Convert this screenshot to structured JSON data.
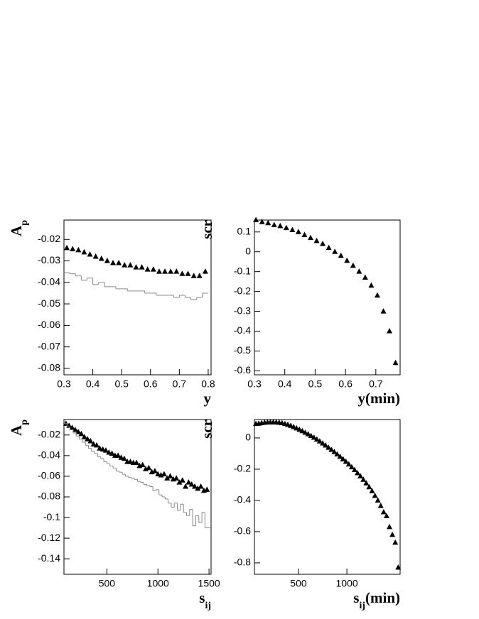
{
  "chart_data": [
    {
      "type": "scatter",
      "xlabel": [
        {
          "text": "y"
        }
      ],
      "ylabel": [
        {
          "text": "A"
        },
        {
          "text": "p",
          "sub": true
        }
      ],
      "xlim": [
        0.3,
        0.81
      ],
      "xticks": [
        0.3,
        0.4,
        0.5,
        0.6,
        0.7,
        0.8
      ],
      "ylim": [
        -0.083,
        -0.011
      ],
      "yticks": [
        -0.02,
        -0.03,
        -0.04,
        -0.05,
        -0.06,
        -0.07,
        -0.08
      ],
      "series": [
        {
          "type": "scatter",
          "color": "#000000",
          "x": [
            0.31,
            0.33,
            0.35,
            0.37,
            0.39,
            0.41,
            0.43,
            0.45,
            0.47,
            0.49,
            0.51,
            0.53,
            0.55,
            0.57,
            0.59,
            0.61,
            0.63,
            0.65,
            0.67,
            0.69,
            0.71,
            0.73,
            0.75,
            0.77,
            0.79
          ],
          "values": [
            -0.024,
            -0.0245,
            -0.025,
            -0.026,
            -0.027,
            -0.028,
            -0.029,
            -0.03,
            -0.031,
            -0.031,
            -0.032,
            -0.032,
            -0.033,
            -0.033,
            -0.034,
            -0.034,
            -0.035,
            -0.035,
            -0.035,
            -0.035,
            -0.036,
            -0.036,
            -0.037,
            -0.037,
            -0.035
          ]
        },
        {
          "type": "histogram",
          "color": "#888888",
          "bins": [
            0.3,
            0.32,
            0.34,
            0.36,
            0.38,
            0.4,
            0.42,
            0.44,
            0.46,
            0.48,
            0.5,
            0.52,
            0.54,
            0.56,
            0.58,
            0.6,
            0.62,
            0.64,
            0.66,
            0.68,
            0.7,
            0.72,
            0.74,
            0.76,
            0.78,
            0.8
          ],
          "values": [
            -0.0355,
            -0.036,
            -0.037,
            -0.039,
            -0.038,
            -0.041,
            -0.04,
            -0.042,
            -0.042,
            -0.043,
            -0.043,
            -0.044,
            -0.044,
            -0.044,
            -0.045,
            -0.045,
            -0.046,
            -0.046,
            -0.046,
            -0.047,
            -0.046,
            -0.047,
            -0.048,
            -0.047,
            -0.045
          ]
        }
      ]
    },
    {
      "type": "scatter",
      "xlabel": [
        {
          "text": "y(min)"
        }
      ],
      "ylabel": [
        {
          "text": "scr"
        }
      ],
      "xlim": [
        0.3,
        0.78
      ],
      "xticks": [
        0.3,
        0.4,
        0.5,
        0.6,
        0.7
      ],
      "ylim": [
        -0.62,
        0.16
      ],
      "yticks": [
        0.1,
        0,
        -0.1,
        -0.2,
        -0.3,
        -0.4,
        -0.5,
        -0.6
      ],
      "series": [
        {
          "type": "scatter",
          "color": "#000000",
          "x": [
            0.305,
            0.325,
            0.345,
            0.365,
            0.385,
            0.405,
            0.425,
            0.445,
            0.465,
            0.485,
            0.505,
            0.525,
            0.545,
            0.565,
            0.585,
            0.605,
            0.625,
            0.645,
            0.665,
            0.685,
            0.705,
            0.725,
            0.745,
            0.765
          ],
          "values": [
            0.16,
            0.15,
            0.145,
            0.135,
            0.13,
            0.12,
            0.11,
            0.1,
            0.085,
            0.07,
            0.055,
            0.04,
            0.02,
            0,
            -0.02,
            -0.045,
            -0.07,
            -0.1,
            -0.13,
            -0.17,
            -0.22,
            -0.3,
            -0.4,
            -0.56
          ]
        }
      ]
    },
    {
      "type": "scatter",
      "xlabel": [
        {
          "text": "s"
        },
        {
          "text": "ij",
          "sub": true
        }
      ],
      "ylabel": [
        {
          "text": "A"
        },
        {
          "text": "p",
          "sub": true
        }
      ],
      "xlim": [
        80,
        1520
      ],
      "xticks": [
        500,
        1000,
        1500
      ],
      "ylim": [
        -0.155,
        -0.005
      ],
      "yticks": [
        -0.02,
        -0.04,
        -0.06,
        -0.08,
        -0.1,
        -0.12,
        -0.14
      ],
      "series": [
        {
          "type": "scatter",
          "color": "#000000",
          "x": [
            100,
            130,
            160,
            190,
            220,
            250,
            280,
            310,
            340,
            370,
            400,
            430,
            460,
            490,
            520,
            550,
            580,
            610,
            640,
            670,
            700,
            730,
            760,
            790,
            820,
            850,
            880,
            910,
            940,
            970,
            1000,
            1030,
            1060,
            1090,
            1120,
            1150,
            1180,
            1210,
            1240,
            1270,
            1300,
            1330,
            1360,
            1390,
            1420,
            1450,
            1480
          ],
          "values": [
            -0.009,
            -0.011,
            -0.013,
            -0.015,
            -0.017,
            -0.019,
            -0.022,
            -0.024,
            -0.026,
            -0.029,
            -0.03,
            -0.033,
            -0.034,
            -0.035,
            -0.037,
            -0.038,
            -0.04,
            -0.04,
            -0.042,
            -0.043,
            -0.046,
            -0.046,
            -0.047,
            -0.047,
            -0.05,
            -0.049,
            -0.053,
            -0.052,
            -0.056,
            -0.055,
            -0.058,
            -0.059,
            -0.058,
            -0.062,
            -0.06,
            -0.063,
            -0.062,
            -0.066,
            -0.064,
            -0.07,
            -0.066,
            -0.068,
            -0.07,
            -0.072,
            -0.07,
            -0.074,
            -0.073
          ]
        },
        {
          "type": "histogram",
          "color": "#888888",
          "bins": [
            80,
            110,
            140,
            170,
            200,
            230,
            260,
            290,
            320,
            350,
            380,
            410,
            440,
            470,
            500,
            530,
            560,
            590,
            620,
            650,
            680,
            710,
            740,
            770,
            800,
            830,
            860,
            890,
            920,
            950,
            980,
            1010,
            1040,
            1070,
            1100,
            1130,
            1160,
            1190,
            1220,
            1250,
            1280,
            1310,
            1340,
            1370,
            1400,
            1430,
            1460,
            1490,
            1520
          ],
          "values": [
            -0.009,
            -0.012,
            -0.015,
            -0.018,
            -0.021,
            -0.024,
            -0.027,
            -0.03,
            -0.033,
            -0.036,
            -0.038,
            -0.041,
            -0.043,
            -0.046,
            -0.048,
            -0.05,
            -0.052,
            -0.055,
            -0.056,
            -0.058,
            -0.06,
            -0.061,
            -0.062,
            -0.063,
            -0.065,
            -0.066,
            -0.068,
            -0.069,
            -0.07,
            -0.074,
            -0.073,
            -0.078,
            -0.08,
            -0.082,
            -0.086,
            -0.09,
            -0.086,
            -0.093,
            -0.087,
            -0.095,
            -0.098,
            -0.092,
            -0.108,
            -0.098,
            -0.105,
            -0.095,
            -0.11,
            -0.11
          ]
        }
      ]
    },
    {
      "type": "scatter",
      "xlabel": [
        {
          "text": "s"
        },
        {
          "text": "ij",
          "sub": true
        },
        {
          "text": "(min)"
        }
      ],
      "ylabel": [
        {
          "text": "scr"
        }
      ],
      "xlim": [
        45,
        1550
      ],
      "xticks": [
        500,
        1000
      ],
      "ylim": [
        -0.873,
        0.118
      ],
      "yticks": [
        0,
        -0.2,
        -0.4,
        -0.6,
        -0.8
      ],
      "series": [
        {
          "type": "scatter",
          "color": "#000000",
          "x": [
            60,
            90,
            120,
            150,
            180,
            210,
            240,
            270,
            300,
            330,
            360,
            390,
            420,
            450,
            480,
            510,
            540,
            570,
            600,
            630,
            660,
            690,
            720,
            750,
            780,
            810,
            840,
            870,
            900,
            930,
            960,
            990,
            1020,
            1050,
            1080,
            1110,
            1140,
            1170,
            1200,
            1230,
            1260,
            1290,
            1320,
            1350,
            1380,
            1410,
            1440,
            1470,
            1500,
            1530
          ],
          "values": [
            0.09,
            0.092,
            0.095,
            0.098,
            0.1,
            0.1,
            0.1,
            0.1,
            0.098,
            0.095,
            0.09,
            0.085,
            0.078,
            0.07,
            0.062,
            0.053,
            0.044,
            0.034,
            0.024,
            0.013,
            0.002,
            -0.01,
            -0.022,
            -0.035,
            -0.048,
            -0.062,
            -0.076,
            -0.09,
            -0.105,
            -0.12,
            -0.136,
            -0.152,
            -0.169,
            -0.187,
            -0.205,
            -0.225,
            -0.245,
            -0.267,
            -0.29,
            -0.315,
            -0.34,
            -0.37,
            -0.4,
            -0.435,
            -0.475,
            -0.5,
            -0.57,
            -0.62,
            -0.67,
            -0.83
          ]
        }
      ]
    }
  ]
}
